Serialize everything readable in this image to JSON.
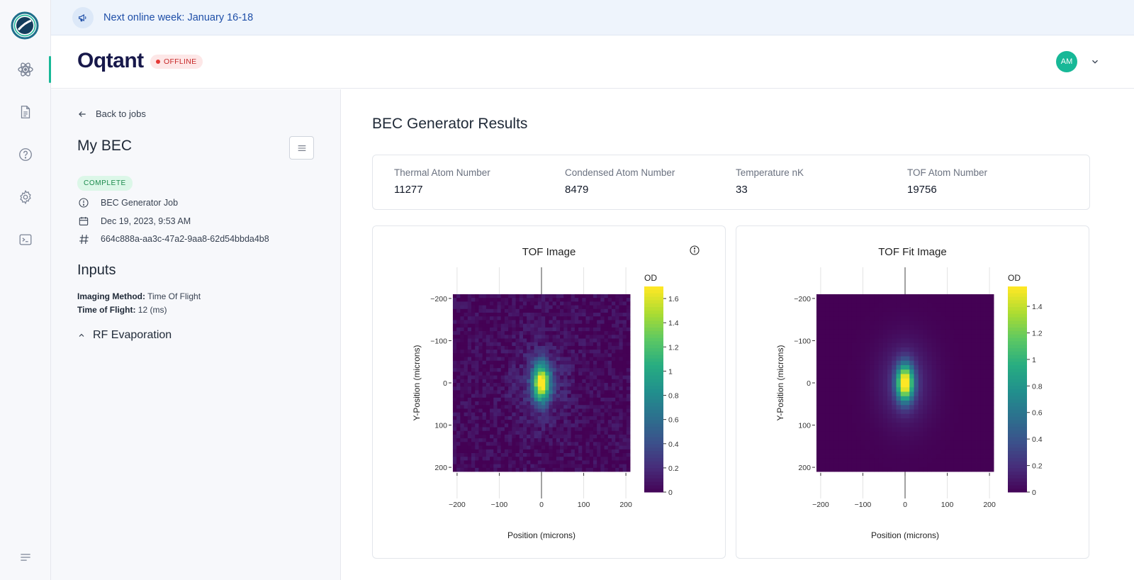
{
  "announcement": {
    "text": "Next online week: January 16-18"
  },
  "header": {
    "brand": "Oqtant",
    "status": "OFFLINE",
    "user_initials": "AM"
  },
  "rail": {
    "icons": [
      "app-logo",
      "atom-icon",
      "document-icon",
      "help-icon",
      "settings-icon",
      "terminal-icon",
      "collapse-menu-icon"
    ]
  },
  "side": {
    "back_label": "Back to jobs",
    "job_name": "My BEC",
    "status": "COMPLETE",
    "job_type": "BEC Generator Job",
    "date": "Dec 19, 2023, 9:53 AM",
    "job_id": "664c888a-aa3c-47a2-9aa8-62d54bbda4b8",
    "inputs_title": "Inputs",
    "imaging_method_label": "Imaging Method:",
    "imaging_method_value": "Time Of Flight",
    "time_of_flight_label": "Time of Flight:",
    "time_of_flight_value": "12 (ms)",
    "rf_section": "RF Evaporation"
  },
  "main": {
    "title": "BEC Generator Results",
    "stats": [
      {
        "label": "Thermal Atom Number",
        "value": "11277"
      },
      {
        "label": "Condensed Atom Number",
        "value": "8479"
      },
      {
        "label": "Temperature nK",
        "value": "33"
      },
      {
        "label": "TOF Atom Number",
        "value": "19756"
      }
    ]
  },
  "colors": {
    "accent": "#17b897",
    "brand": "#17184a",
    "announce_text": "#1f4fa8",
    "offline": "#e53935"
  },
  "chart_data": [
    {
      "type": "heatmap",
      "title": "TOF Image",
      "xlabel": "Position (microns)",
      "ylabel": "Y-Position (microns)",
      "xlim": [
        -220,
        220
      ],
      "ylim": [
        -220,
        220
      ],
      "xticks": [
        -200,
        -100,
        0,
        100,
        200
      ],
      "yticks": [
        -200,
        -100,
        0,
        100,
        200
      ],
      "colorbar_label": "OD",
      "colorbar_range": [
        0,
        1.7
      ],
      "colorbar_ticks": [
        0,
        0.2,
        0.4,
        0.6,
        0.8,
        1,
        1.2,
        1.4,
        1.6
      ],
      "peak": {
        "x": 0,
        "y": 0,
        "value": 1.65
      },
      "noisy": true
    },
    {
      "type": "heatmap",
      "title": "TOF Fit Image",
      "xlabel": "Position (microns)",
      "ylabel": "Y-Position (microns)",
      "xlim": [
        -220,
        220
      ],
      "ylim": [
        -220,
        220
      ],
      "xticks": [
        -200,
        -100,
        0,
        100,
        200
      ],
      "yticks": [
        -200,
        -100,
        0,
        100,
        200
      ],
      "colorbar_label": "OD",
      "colorbar_range": [
        0,
        1.55
      ],
      "colorbar_ticks": [
        0,
        0.2,
        0.4,
        0.6,
        0.8,
        1,
        1.2,
        1.4
      ],
      "peak": {
        "x": 0,
        "y": 0,
        "value": 1.55
      },
      "noisy": false
    }
  ]
}
